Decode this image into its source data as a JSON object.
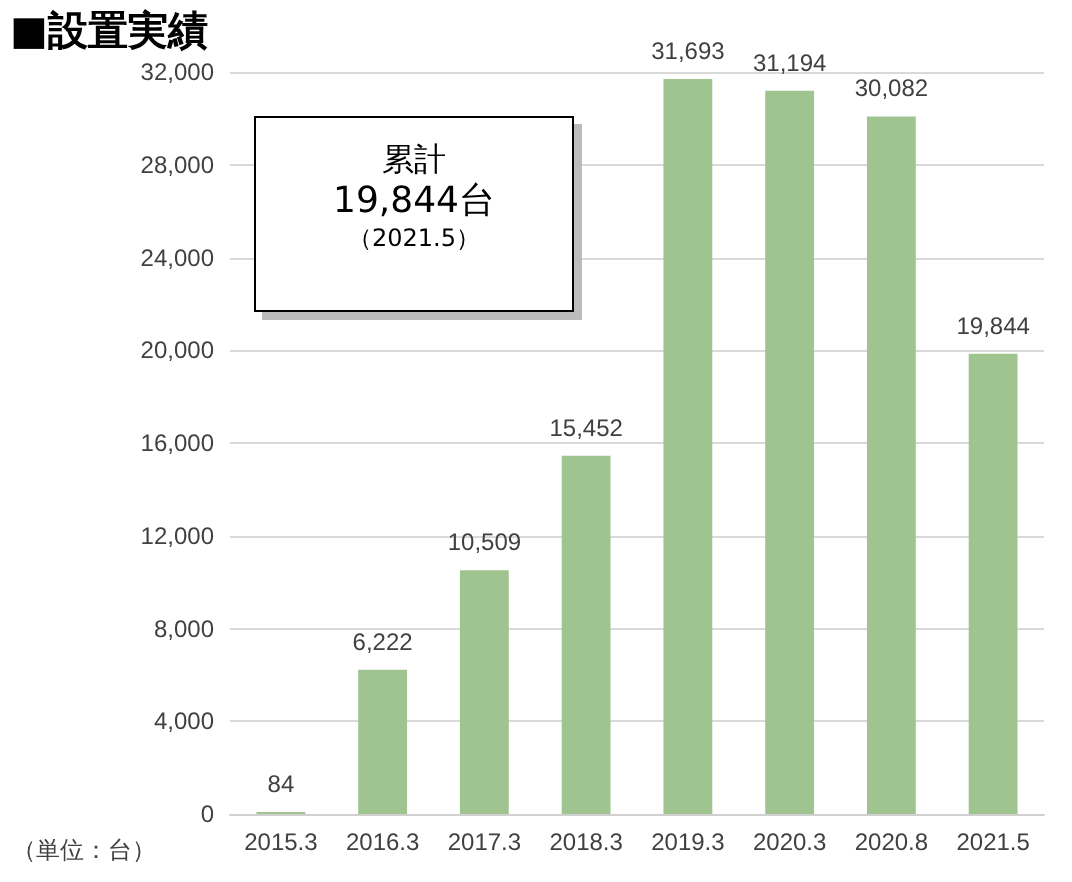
{
  "chart_data": {
    "type": "bar",
    "title": "■設置実績",
    "categories": [
      "2015.3",
      "2016.3",
      "2017.3",
      "2018.3",
      "2019.3",
      "2020.3",
      "2020.8",
      "2021.5"
    ],
    "values": [
      84,
      6222,
      10509,
      15452,
      31693,
      31194,
      30082,
      19844
    ],
    "color": "#a0c490",
    "value_labels": [
      "84",
      "6,222",
      "10,509",
      "15,452",
      "31,693",
      "31,194",
      "30,082",
      "19,844"
    ],
    "ylim": [
      0,
      32000
    ],
    "yticks": [
      0,
      {
        "value": 4000,
        "label": "4,000"
      },
      {
        "value": 8000,
        "label": "8,000"
      },
      {
        "value": 12000,
        "label": "12,000"
      },
      {
        "value": 16000,
        "label": "16,000"
      },
      {
        "value": 20000,
        "label": "20,000"
      },
      {
        "value": 24000,
        "label": "24,000"
      },
      {
        "value": 28000,
        "label": "28,000"
      },
      {
        "value": 32000,
        "label": "32,000"
      }
    ],
    "grid": "y",
    "annotations": [
      "累計",
      "19,844台",
      "（2021.5）",
      "（単位：台）"
    ]
  }
}
